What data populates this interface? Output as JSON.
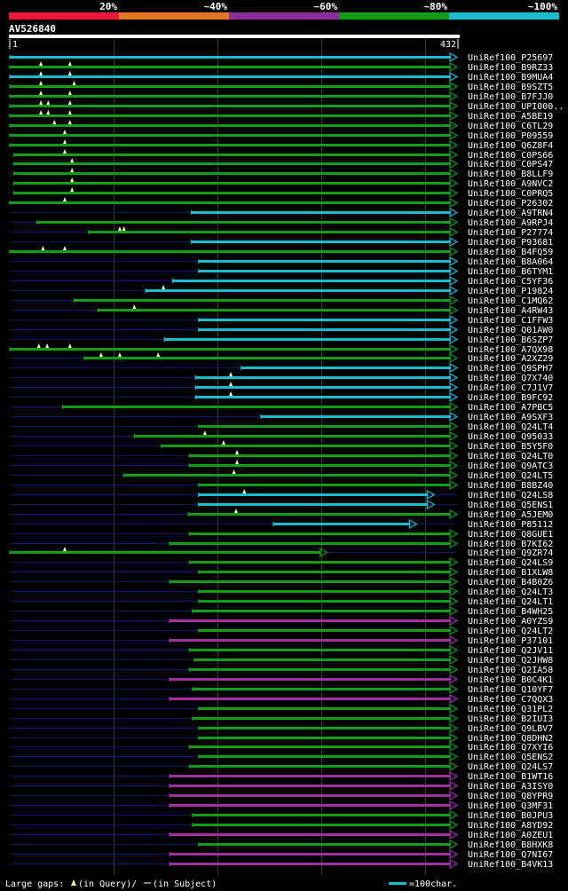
{
  "chart_data": {
    "type": "bar",
    "title": "AV526840",
    "query_start_label": "1",
    "query_end_label": "432",
    "query_length": 432,
    "identity_legend": [
      {
        "label": "20%",
        "color": "#ee1a3c"
      },
      {
        "label": "~40%",
        "color": "#e87722"
      },
      {
        "label": "~60%",
        "color": "#8e2d99"
      },
      {
        "label": "~80%",
        "color": "#129c1a"
      },
      {
        "label": "~100%",
        "color": "#1cbcd0"
      }
    ],
    "footer": {
      "gap_text_prefix": "Large gaps: ",
      "gap_text_query": "(in Query)/",
      "gap_text_subject": "(in Subject)",
      "scale_text": "=100char."
    },
    "hits": [
      {
        "name": "UniRef100_P25697",
        "start": 1,
        "end": 432,
        "color": "cyan",
        "arrow": true,
        "gaps": []
      },
      {
        "name": "UniRef100_B9RZ33",
        "start": 1,
        "end": 432,
        "color": "green",
        "arrow": true,
        "gaps": [
          31,
          59
        ]
      },
      {
        "name": "UniRef100_B9MUA4",
        "start": 1,
        "end": 432,
        "color": "cyan",
        "arrow": true,
        "gaps": [
          31,
          59
        ]
      },
      {
        "name": "UniRef100_B9SZT5",
        "start": 1,
        "end": 432,
        "color": "green",
        "arrow": true,
        "gaps": [
          31,
          63
        ]
      },
      {
        "name": "UniRef100_B7FJJ0",
        "start": 1,
        "end": 432,
        "color": "green",
        "arrow": true,
        "gaps": [
          31,
          59
        ]
      },
      {
        "name": "UniRef100_UPI000..",
        "start": 1,
        "end": 432,
        "color": "green",
        "arrow": true,
        "gaps": [
          31,
          38,
          59
        ]
      },
      {
        "name": "UniRef100_A5BE19",
        "start": 1,
        "end": 432,
        "color": "green",
        "arrow": true,
        "gaps": [
          31,
          38,
          59
        ]
      },
      {
        "name": "UniRef100_C6TL29",
        "start": 1,
        "end": 432,
        "color": "green",
        "arrow": true,
        "gaps": [
          44,
          59
        ]
      },
      {
        "name": "UniRef100_P09559",
        "start": 1,
        "end": 432,
        "color": "green",
        "arrow": true,
        "gaps": [
          54
        ]
      },
      {
        "name": "UniRef100_Q6Z8F4",
        "start": 1,
        "end": 432,
        "color": "green",
        "arrow": true,
        "gaps": [
          54
        ]
      },
      {
        "name": "UniRef100_C0PS66",
        "start": 5,
        "end": 432,
        "color": "green",
        "arrow": true,
        "gaps": [
          54
        ]
      },
      {
        "name": "UniRef100_C0PS47",
        "start": 5,
        "end": 432,
        "color": "green",
        "arrow": true,
        "gaps": [
          61
        ]
      },
      {
        "name": "UniRef100_B8LLF9",
        "start": 5,
        "end": 432,
        "color": "green",
        "arrow": true,
        "gaps": [
          61
        ]
      },
      {
        "name": "UniRef100_A9NVC2",
        "start": 5,
        "end": 432,
        "color": "green",
        "arrow": true,
        "gaps": [
          61
        ]
      },
      {
        "name": "UniRef100_C0PRQ5",
        "start": 5,
        "end": 432,
        "color": "green",
        "arrow": true,
        "gaps": [
          61
        ]
      },
      {
        "name": "UniRef100_P26302",
        "start": 1,
        "end": 432,
        "color": "green",
        "arrow": true,
        "gaps": [
          54
        ]
      },
      {
        "name": "UniRef100_A9TRN4",
        "start": 176,
        "end": 432,
        "color": "cyan",
        "arrow": true,
        "gaps": []
      },
      {
        "name": "UniRef100_A9RPJ4",
        "start": 27,
        "end": 432,
        "color": "green",
        "arrow": true,
        "gaps": []
      },
      {
        "name": "UniRef100_P27774",
        "start": 77,
        "end": 432,
        "color": "green",
        "arrow": true,
        "gaps": [
          107,
          111
        ]
      },
      {
        "name": "UniRef100_P93681",
        "start": 176,
        "end": 432,
        "color": "cyan",
        "arrow": true,
        "gaps": []
      },
      {
        "name": "UniRef100_B4FQ59",
        "start": 1,
        "end": 432,
        "color": "green",
        "arrow": true,
        "gaps": [
          33,
          54
        ]
      },
      {
        "name": "UniRef100_B8A064",
        "start": 183,
        "end": 432,
        "color": "cyan",
        "arrow": true,
        "gaps": []
      },
      {
        "name": "UniRef100_B6TYM1",
        "start": 183,
        "end": 432,
        "color": "cyan",
        "arrow": true,
        "gaps": []
      },
      {
        "name": "UniRef100_C5YF36",
        "start": 158,
        "end": 432,
        "color": "cyan",
        "arrow": true,
        "gaps": []
      },
      {
        "name": "UniRef100_P19824",
        "start": 132,
        "end": 432,
        "color": "cyan",
        "arrow": true,
        "gaps": [
          149
        ]
      },
      {
        "name": "UniRef100_C1MQ62",
        "start": 63,
        "end": 432,
        "color": "green",
        "arrow": true,
        "gaps": []
      },
      {
        "name": "UniRef100_A4RW43",
        "start": 86,
        "end": 432,
        "color": "green",
        "arrow": true,
        "gaps": [
          121
        ]
      },
      {
        "name": "UniRef100_C1FFW3",
        "start": 183,
        "end": 432,
        "color": "cyan",
        "arrow": true,
        "gaps": []
      },
      {
        "name": "UniRef100_Q01AW0",
        "start": 183,
        "end": 432,
        "color": "cyan",
        "arrow": true,
        "gaps": []
      },
      {
        "name": "UniRef100_B6SZP7",
        "start": 150,
        "end": 432,
        "color": "cyan",
        "arrow": true,
        "gaps": []
      },
      {
        "name": "UniRef100_A7QX98",
        "start": 1,
        "end": 432,
        "color": "green",
        "arrow": true,
        "gaps": [
          29,
          37,
          59
        ]
      },
      {
        "name": "UniRef100_A2XZ29",
        "start": 73,
        "end": 432,
        "color": "green",
        "arrow": true,
        "gaps": [
          89,
          107,
          144
        ]
      },
      {
        "name": "UniRef100_Q9SPH7",
        "start": 224,
        "end": 432,
        "color": "cyan",
        "arrow": true,
        "gaps": []
      },
      {
        "name": "UniRef100_Q7X740",
        "start": 180,
        "end": 432,
        "color": "cyan",
        "arrow": true,
        "gaps": [
          214
        ]
      },
      {
        "name": "UniRef100_C7J1V7",
        "start": 180,
        "end": 432,
        "color": "cyan",
        "arrow": true,
        "gaps": [
          214
        ]
      },
      {
        "name": "UniRef100_B9FC92",
        "start": 180,
        "end": 432,
        "color": "cyan",
        "arrow": true,
        "gaps": [
          214
        ]
      },
      {
        "name": "UniRef100_A7PBC5",
        "start": 52,
        "end": 432,
        "color": "green",
        "arrow": true,
        "gaps": []
      },
      {
        "name": "UniRef100_A9SXF3",
        "start": 243,
        "end": 432,
        "color": "cyan",
        "arrow": true,
        "gaps": []
      },
      {
        "name": "UniRef100_Q24LT4",
        "start": 183,
        "end": 432,
        "color": "green",
        "arrow": true,
        "gaps": []
      },
      {
        "name": "UniRef100_Q95033",
        "start": 121,
        "end": 432,
        "color": "green",
        "arrow": true,
        "gaps": [
          189
        ]
      },
      {
        "name": "UniRef100_B5Y5F0",
        "start": 147,
        "end": 432,
        "color": "green",
        "arrow": true,
        "gaps": [
          207
        ]
      },
      {
        "name": "UniRef100_Q24LT0",
        "start": 174,
        "end": 432,
        "color": "green",
        "arrow": true,
        "gaps": [
          220
        ]
      },
      {
        "name": "UniRef100_Q9ATC3",
        "start": 174,
        "end": 432,
        "color": "green",
        "arrow": true,
        "gaps": [
          220
        ]
      },
      {
        "name": "UniRef100_Q24LT5",
        "start": 111,
        "end": 432,
        "color": "green",
        "arrow": true,
        "gaps": [
          217
        ]
      },
      {
        "name": "UniRef100_B8BZ40",
        "start": 183,
        "end": 432,
        "color": "green",
        "arrow": true,
        "gaps": []
      },
      {
        "name": "UniRef100_Q24LS8",
        "start": 183,
        "end": 410,
        "color": "cyan",
        "arrow": true,
        "gaps": [
          227
        ]
      },
      {
        "name": "UniRef100_Q5ENS1",
        "start": 183,
        "end": 410,
        "color": "cyan",
        "arrow": true,
        "gaps": []
      },
      {
        "name": "UniRef100_A5JEM0",
        "start": 173,
        "end": 432,
        "color": "green",
        "arrow": true,
        "gaps": [
          219
        ]
      },
      {
        "name": "UniRef100_P85112",
        "start": 255,
        "end": 393,
        "color": "cyan",
        "arrow": true,
        "gaps": []
      },
      {
        "name": "UniRef100_Q8GUE1",
        "start": 174,
        "end": 432,
        "color": "green",
        "arrow": true,
        "gaps": []
      },
      {
        "name": "UniRef100_B7KI62",
        "start": 155,
        "end": 432,
        "color": "green",
        "arrow": true,
        "gaps": []
      },
      {
        "name": "UniRef100_Q9ZR74",
        "start": 1,
        "end": 307,
        "color": "green",
        "arrow": true,
        "gaps": [
          54
        ]
      },
      {
        "name": "UniRef100_Q24LS9",
        "start": 174,
        "end": 432,
        "color": "green",
        "arrow": true,
        "gaps": []
      },
      {
        "name": "UniRef100_B1XLW8",
        "start": 183,
        "end": 432,
        "color": "green",
        "arrow": true,
        "gaps": []
      },
      {
        "name": "UniRef100_B4B0Z6",
        "start": 155,
        "end": 432,
        "color": "green",
        "arrow": true,
        "gaps": []
      },
      {
        "name": "UniRef100_Q24LT3",
        "start": 183,
        "end": 432,
        "color": "green",
        "arrow": true,
        "gaps": []
      },
      {
        "name": "UniRef100_Q24LT1",
        "start": 183,
        "end": 432,
        "color": "green",
        "arrow": true,
        "gaps": []
      },
      {
        "name": "UniRef100_B4WH25",
        "start": 177,
        "end": 432,
        "color": "green",
        "arrow": true,
        "gaps": []
      },
      {
        "name": "UniRef100_A0YZS9",
        "start": 155,
        "end": 432,
        "color": "purple",
        "arrow": true,
        "gaps": []
      },
      {
        "name": "UniRef100_Q24LT2",
        "start": 183,
        "end": 432,
        "color": "green",
        "arrow": true,
        "gaps": []
      },
      {
        "name": "UniRef100_P37101",
        "start": 155,
        "end": 432,
        "color": "purple",
        "arrow": true,
        "gaps": []
      },
      {
        "name": "UniRef100_Q2JV11",
        "start": 174,
        "end": 432,
        "color": "green",
        "arrow": true,
        "gaps": []
      },
      {
        "name": "UniRef100_Q2JHW8",
        "start": 179,
        "end": 432,
        "color": "green",
        "arrow": true,
        "gaps": []
      },
      {
        "name": "UniRef100_Q2IA58",
        "start": 174,
        "end": 432,
        "color": "green",
        "arrow": true,
        "gaps": []
      },
      {
        "name": "UniRef100_B0C4K1",
        "start": 155,
        "end": 432,
        "color": "purple",
        "arrow": true,
        "gaps": []
      },
      {
        "name": "UniRef100_Q10YF7",
        "start": 177,
        "end": 432,
        "color": "green",
        "arrow": true,
        "gaps": []
      },
      {
        "name": "UniRef100_C7QQX3",
        "start": 155,
        "end": 432,
        "color": "purple",
        "arrow": true,
        "gaps": []
      },
      {
        "name": "UniRef100_Q31PL2",
        "start": 183,
        "end": 432,
        "color": "green",
        "arrow": true,
        "gaps": []
      },
      {
        "name": "UniRef100_B2IUI3",
        "start": 177,
        "end": 432,
        "color": "green",
        "arrow": true,
        "gaps": []
      },
      {
        "name": "UniRef100_Q9LBV7",
        "start": 183,
        "end": 432,
        "color": "green",
        "arrow": true,
        "gaps": []
      },
      {
        "name": "UniRef100_Q8DHN2",
        "start": 183,
        "end": 432,
        "color": "green",
        "arrow": true,
        "gaps": []
      },
      {
        "name": "UniRef100_Q7XYI6",
        "start": 174,
        "end": 432,
        "color": "green",
        "arrow": true,
        "gaps": []
      },
      {
        "name": "UniRef100_Q5ENS2",
        "start": 183,
        "end": 432,
        "color": "green",
        "arrow": true,
        "gaps": []
      },
      {
        "name": "UniRef100_Q24LS7",
        "start": 174,
        "end": 432,
        "color": "green",
        "arrow": true,
        "gaps": []
      },
      {
        "name": "UniRef100_B1WT16",
        "start": 155,
        "end": 432,
        "color": "purple",
        "arrow": true,
        "gaps": []
      },
      {
        "name": "UniRef100_A3ISY0",
        "start": 155,
        "end": 432,
        "color": "purple",
        "arrow": true,
        "gaps": []
      },
      {
        "name": "UniRef100_Q8YPR9",
        "start": 155,
        "end": 432,
        "color": "purple",
        "arrow": true,
        "gaps": []
      },
      {
        "name": "UniRef100_Q3MF31",
        "start": 155,
        "end": 432,
        "color": "purple",
        "arrow": true,
        "gaps": []
      },
      {
        "name": "UniRef100_B0JPU3",
        "start": 177,
        "end": 432,
        "color": "green",
        "arrow": true,
        "gaps": []
      },
      {
        "name": "UniRef100_A8YD92",
        "start": 177,
        "end": 432,
        "color": "green",
        "arrow": true,
        "gaps": []
      },
      {
        "name": "UniRef100_A0ZEU1",
        "start": 155,
        "end": 432,
        "color": "purple",
        "arrow": true,
        "gaps": []
      },
      {
        "name": "UniRef100_B8HXK8",
        "start": 183,
        "end": 432,
        "color": "green",
        "arrow": true,
        "gaps": []
      },
      {
        "name": "UniRef100_Q7NI67",
        "start": 155,
        "end": 432,
        "color": "purple",
        "arrow": true,
        "gaps": []
      },
      {
        "name": "UniRef100_B4VK13",
        "start": 155,
        "end": 432,
        "color": "purple",
        "arrow": true,
        "gaps": []
      }
    ]
  },
  "colors": {
    "cyan": "#1cbcd0",
    "green": "#129c1a",
    "purple": "#a0309f",
    "unaligned": "#0a1a5a",
    "grid": "#3a3a3a",
    "gap_marker": "#ffff99",
    "background": "#000000",
    "text": "#ffffff"
  }
}
